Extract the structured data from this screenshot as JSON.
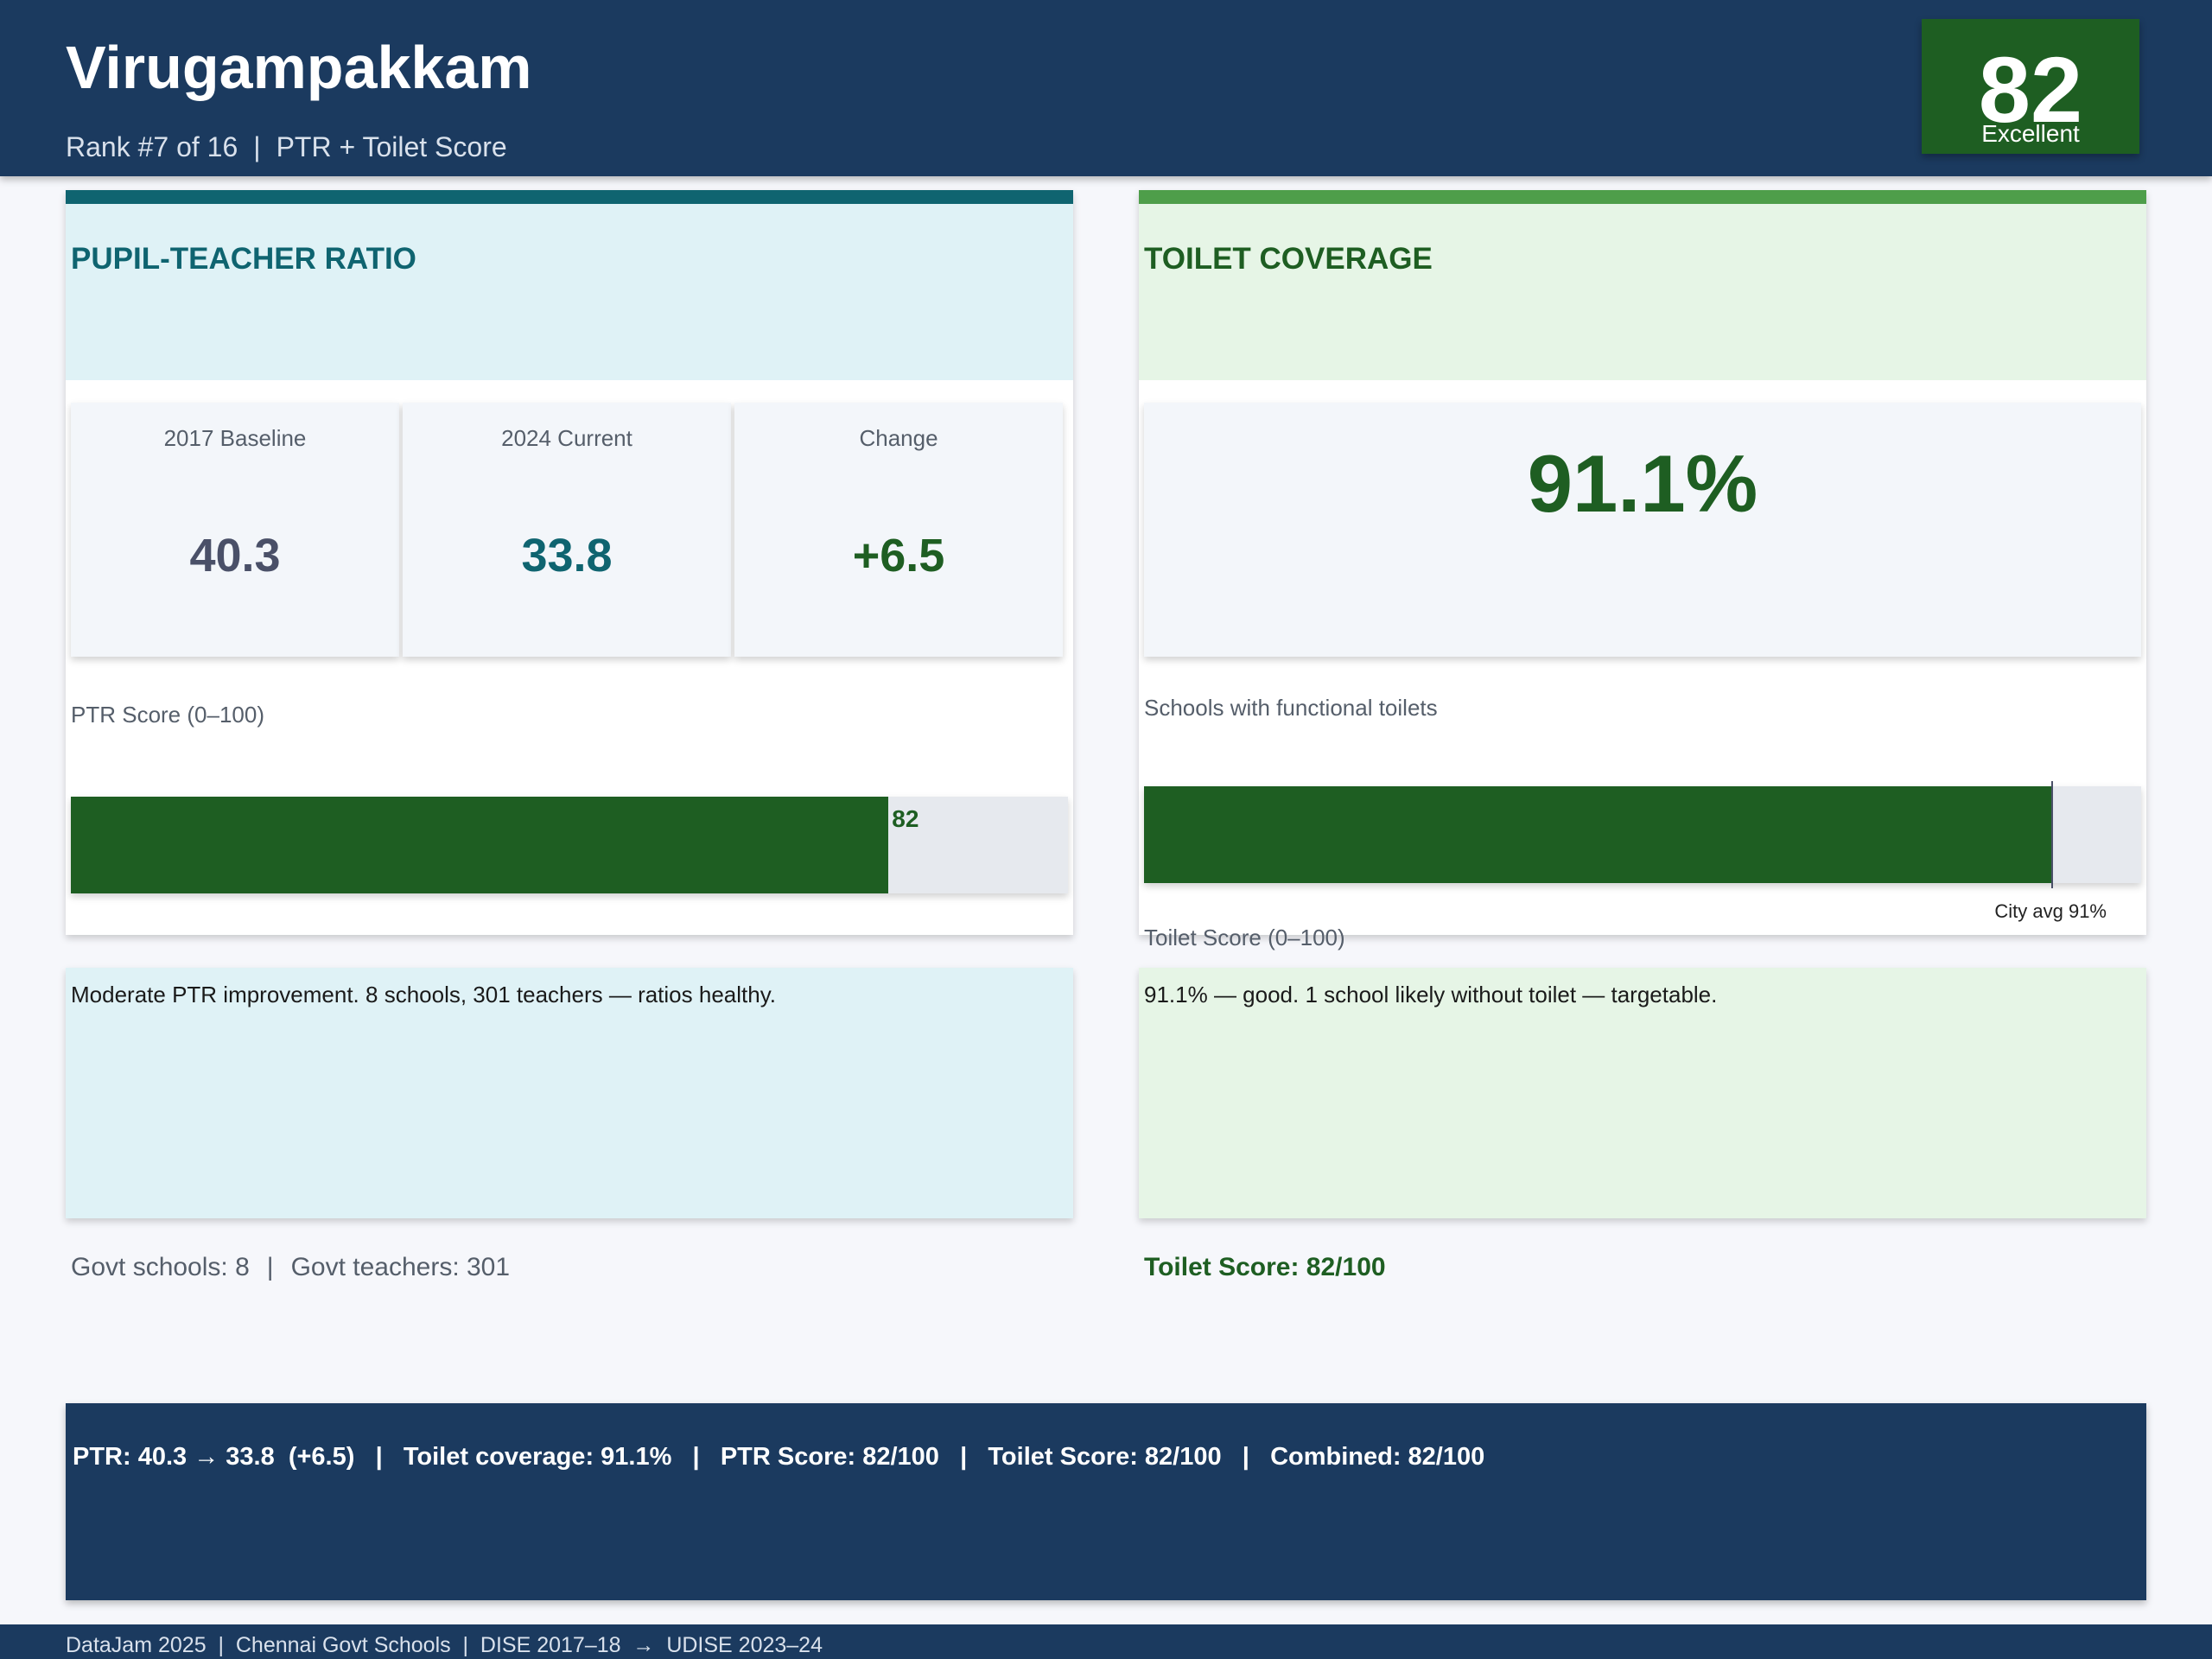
{
  "header": {
    "title": "Virugampakkam",
    "rank": "Rank #7 of 16",
    "separator": "|",
    "score_type": "PTR + Toilet Score",
    "score": "82",
    "rating": "Excellent"
  },
  "ptr": {
    "title": "PUPIL-TEACHER RATIO",
    "baseline_label": "2017 Baseline",
    "baseline_value": "40.3",
    "current_label": "2024 Current",
    "current_value": "33.8",
    "change_label": "Change",
    "change_value": "+6.5",
    "score_label": "PTR Score (0–100)",
    "score_value": "82",
    "score_fraction": 0.82,
    "note": "Moderate PTR improvement. 8 schools, 301 teachers — ratios healthy.",
    "footer_schools": "Govt schools: 8",
    "footer_sep": "|",
    "footer_teachers": "Govt teachers: 301"
  },
  "toilet": {
    "title": "TOILET COVERAGE",
    "coverage": "91.1%",
    "caption": "Schools with functional toilets",
    "coverage_fraction": 0.911,
    "city_avg_label": "City avg 91%",
    "city_avg_fraction": 0.91,
    "score_label": "Toilet Score (0–100)",
    "note": "91.1% — good. 1 school likely without toilet — targetable.",
    "footer_score": "Toilet Score: 82/100"
  },
  "summary": {
    "text": "PTR: 40.3 → 33.8  (+6.5)   |   Toilet coverage: 91.1%   |   PTR Score: 82/100   |   Toilet Score: 82/100   |   Combined: 82/100"
  },
  "footer": {
    "text": "DataJam 2025  |  Chennai Govt Schools  |  DISE 2017–18  →  UDISE 2023–24"
  },
  "colors": {
    "navy": "#1b3a5f",
    "teal": "#0f6470",
    "dark_green": "#1e5e22",
    "light_green_bar": "#4e9e4a",
    "slate": "#4a5068"
  }
}
